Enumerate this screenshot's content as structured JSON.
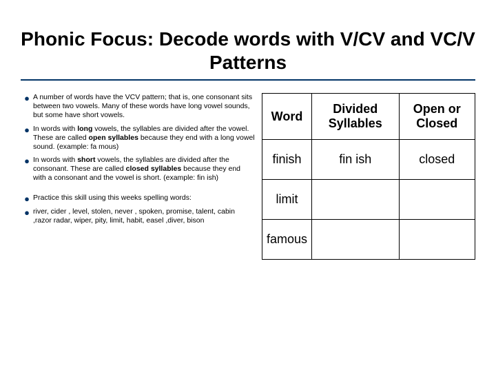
{
  "title": "Phonic Focus:  Decode words with V/CV and VC/V Patterns",
  "bullets": {
    "b1_pre": "A number of words have the VCV pattern; that is, one consonant sits between two vowels.  Many of these words have long vowel sounds, but some have short vowels.",
    "b2_a": "In words with ",
    "b2_bold1": "long",
    "b2_b": " vowels, the syllables are divided after the vowel.  These are called ",
    "b2_bold2": "open syllables",
    "b2_c": " because they end with a long vowel sound.  (example:  fa  mous)",
    "b3_a": "In words with ",
    "b3_bold1": "short",
    "b3_b": " vowels, the syllables are divided after the consonant.  These are called ",
    "b3_bold2": "closed syllables",
    "b3_c": " because they end with a consonant and the vowel is short.  (example:  fin ish)",
    "b4": "Practice this skill using this weeks spelling words:",
    "b5": " river, cider , level,  stolen, never , spoken, promise, talent, cabin ,razor radar, wiper, pity, limit, habit, easel ,diver, bison"
  },
  "table": {
    "headers": {
      "h1": "Word",
      "h2": "Divided Syllables",
      "h3": "Open or Closed"
    },
    "rows": [
      {
        "word": "finish",
        "divided": "fin ish",
        "type": "closed"
      },
      {
        "word": "limit",
        "divided": "",
        "type": ""
      },
      {
        "word": "famous",
        "divided": "",
        "type": ""
      }
    ]
  },
  "colors": {
    "accent": "#003366",
    "text": "#000000",
    "background": "#ffffff",
    "border": "#000000"
  }
}
